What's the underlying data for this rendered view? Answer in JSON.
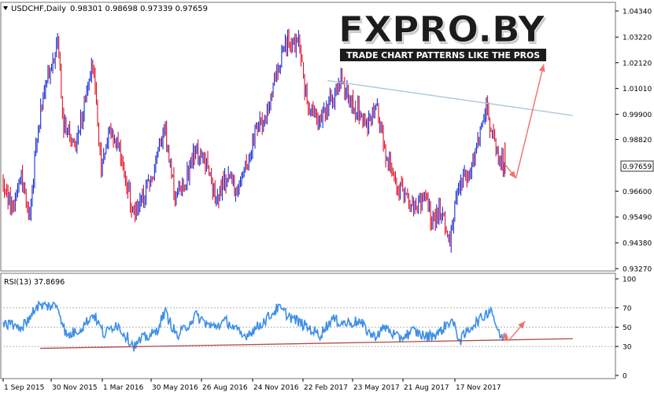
{
  "symbol_header": {
    "symbol": "USDCHF,Daily",
    "ohlc": "0.98301 0.98698 0.97339 0.97659"
  },
  "logo": {
    "brand_text": "FXPRO.BY",
    "tagline": "TRADE CHART PATTERNS LIKE THE PROS"
  },
  "current_price_label": "0.97659",
  "colors": {
    "bull_candle": "#1a2fd6",
    "bear_candle": "#e0102a",
    "trendline": "#a8c4d6",
    "arrow": "#f0706a",
    "rsi_line": "#3d8fe6",
    "rsi_trendline": "#b24a4a",
    "grid": "#9a9a9a"
  },
  "chart_data": [
    {
      "type": "candlestick",
      "name": "USDCHF,Daily",
      "y_ticks": [
        "1.04340",
        "1.03220",
        "1.02120",
        "1.01010",
        "0.99900",
        "0.98820",
        "0.97659",
        "0.96600",
        "0.95490",
        "0.94380",
        "0.93270"
      ],
      "ylim": [
        0.9327,
        1.0434
      ],
      "x_ticks": [
        "1 Sep 2015",
        "30 Nov 2015",
        "1 Mar 2016",
        "30 May 2016",
        "26 Aug 2016",
        "24 Nov 2016",
        "22 Feb 2017",
        "23 May 2017",
        "21 Aug 2017",
        "17 Nov 2017"
      ],
      "close_path": [
        [
          "2015-09-01",
          0.97
        ],
        [
          "2015-09-15",
          0.958
        ],
        [
          "2015-10-01",
          0.975
        ],
        [
          "2015-10-15",
          0.954
        ],
        [
          "2015-10-27",
          0.99
        ],
        [
          "2015-11-10",
          1.012
        ],
        [
          "2015-11-30",
          1.03
        ],
        [
          "2015-12-10",
          0.995
        ],
        [
          "2015-12-28",
          0.985
        ],
        [
          "2016-01-15",
          1.005
        ],
        [
          "2016-01-28",
          1.022
        ],
        [
          "2016-02-10",
          0.975
        ],
        [
          "2016-02-25",
          0.993
        ],
        [
          "2016-03-15",
          0.98
        ],
        [
          "2016-04-05",
          0.955
        ],
        [
          "2016-04-18",
          0.962
        ],
        [
          "2016-05-05",
          0.973
        ],
        [
          "2016-05-25",
          0.993
        ],
        [
          "2016-06-10",
          0.965
        ],
        [
          "2016-06-24",
          0.968
        ],
        [
          "2016-07-15",
          0.985
        ],
        [
          "2016-08-05",
          0.975
        ],
        [
          "2016-08-17",
          0.962
        ],
        [
          "2016-09-05",
          0.972
        ],
        [
          "2016-09-26",
          0.966
        ],
        [
          "2016-10-20",
          0.99
        ],
        [
          "2016-11-10",
          0.999
        ],
        [
          "2016-11-24",
          1.016
        ],
        [
          "2016-12-15",
          1.032
        ],
        [
          "2017-01-03",
          1.028
        ],
        [
          "2017-01-15",
          1.002
        ],
        [
          "2017-02-05",
          0.995
        ],
        [
          "2017-02-22",
          1.004
        ],
        [
          "2017-03-10",
          1.014
        ],
        [
          "2017-04-05",
          1.002
        ],
        [
          "2017-04-25",
          0.995
        ],
        [
          "2017-05-10",
          1.003
        ],
        [
          "2017-05-23",
          0.982
        ],
        [
          "2017-06-10",
          0.97
        ],
        [
          "2017-06-28",
          0.963
        ],
        [
          "2017-07-15",
          0.958
        ],
        [
          "2017-07-31",
          0.965
        ],
        [
          "2017-08-10",
          0.952
        ],
        [
          "2017-08-21",
          0.958
        ],
        [
          "2017-09-08",
          0.946
        ],
        [
          "2017-09-20",
          0.966
        ],
        [
          "2017-10-10",
          0.975
        ],
        [
          "2017-10-25",
          0.987
        ],
        [
          "2017-11-06",
          1.003
        ],
        [
          "2017-11-17",
          0.99
        ],
        [
          "2017-11-28",
          0.982
        ],
        [
          "2017-12-08",
          0.97659
        ]
      ],
      "annotations": {
        "resistance_trendline": [
          [
            "2017-02-18",
            1.0135
          ],
          [
            "2018-03-30",
            0.9985
          ]
        ],
        "forecast_arrows": [
          [
            [
              "2017-12-08",
              0.9775
            ],
            [
              "2017-12-26",
              0.9715
            ]
          ],
          [
            [
              "2017-12-26",
              0.9715
            ],
            [
              "2018-02-10",
              1.0205
            ]
          ]
        ]
      }
    },
    {
      "type": "line",
      "name": "RSI(13) 37.8696",
      "title": "RSI(13) 37.8696",
      "y_ticks": [
        "100",
        "70",
        "50",
        "30",
        "0"
      ],
      "ylim": [
        0,
        100
      ],
      "x": [
        "2015-09-01",
        "2015-10-01",
        "2015-10-27",
        "2015-11-30",
        "2015-12-15",
        "2016-01-10",
        "2016-01-28",
        "2016-02-15",
        "2016-03-05",
        "2016-04-05",
        "2016-04-18",
        "2016-05-10",
        "2016-05-25",
        "2016-06-15",
        "2016-07-15",
        "2016-08-10",
        "2016-09-05",
        "2016-10-01",
        "2016-10-25",
        "2016-11-15",
        "2016-11-28",
        "2016-12-20",
        "2017-01-10",
        "2017-02-05",
        "2017-02-25",
        "2017-03-20",
        "2017-04-10",
        "2017-05-05",
        "2017-05-25",
        "2017-06-15",
        "2017-07-10",
        "2017-07-31",
        "2017-08-21",
        "2017-09-10",
        "2017-09-25",
        "2017-10-15",
        "2017-11-01",
        "2017-11-15",
        "2017-11-28",
        "2017-12-08"
      ],
      "values": [
        56,
        48,
        72,
        72,
        40,
        50,
        64,
        42,
        54,
        30,
        38,
        44,
        66,
        40,
        62,
        50,
        56,
        40,
        50,
        62,
        70,
        60,
        52,
        42,
        58,
        54,
        56,
        40,
        50,
        38,
        46,
        40,
        44,
        58,
        36,
        52,
        60,
        70,
        42,
        37.87
      ],
      "annotations": {
        "support_trendline": [
          [
            "2015-11-01",
            28
          ],
          [
            "2018-03-30",
            38
          ]
        ],
        "forecast_arrows": [
          [
            [
              "2017-12-05",
              43
            ],
            [
              "2017-12-14",
              36
            ]
          ],
          [
            [
              "2017-12-14",
              36
            ],
            [
              "2018-01-10",
              56
            ]
          ]
        ]
      }
    }
  ]
}
